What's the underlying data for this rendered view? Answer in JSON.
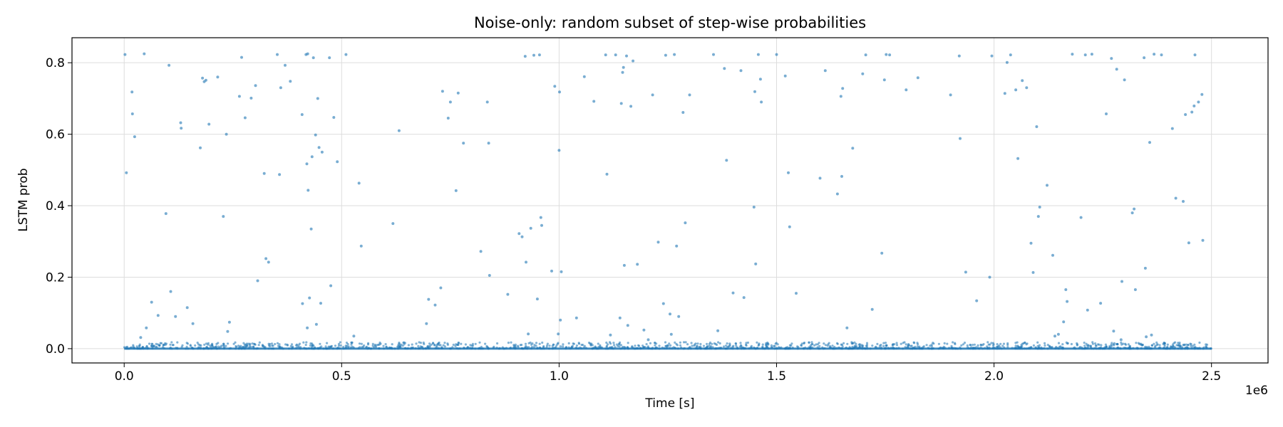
{
  "chart_data": {
    "type": "scatter",
    "title": "Noise-only: random subset of step-wise probabilities",
    "xlabel": "Time [s]",
    "ylabel": "LSTM prob",
    "x_offset_label": "1e6",
    "xlim": [
      -0.12,
      2.63
    ],
    "ylim": [
      -0.04,
      0.87
    ],
    "x_ticks": [
      0.0,
      0.5,
      1.0,
      1.5,
      2.0,
      2.5
    ],
    "x_tick_labels": [
      "0.0",
      "0.5",
      "1.0",
      "1.5",
      "2.0",
      "2.5"
    ],
    "y_ticks": [
      0.0,
      0.2,
      0.4,
      0.6,
      0.8
    ],
    "y_tick_labels": [
      "0.0",
      "0.2",
      "0.4",
      "0.6",
      "0.8"
    ],
    "grid": true,
    "marker_color": "#1f77b4",
    "x_range_data": [
      0.0,
      2.5
    ],
    "points": [
      [
        0.002,
        0.823
      ],
      [
        0.005,
        0.492
      ],
      [
        0.018,
        0.718
      ],
      [
        0.019,
        0.657
      ],
      [
        0.024,
        0.593
      ],
      [
        0.038,
        0.031
      ],
      [
        0.046,
        0.825
      ],
      [
        0.051,
        0.058
      ],
      [
        0.063,
        0.13
      ],
      [
        0.078,
        0.093
      ],
      [
        0.096,
        0.378
      ],
      [
        0.103,
        0.793
      ],
      [
        0.107,
        0.16
      ],
      [
        0.118,
        0.09
      ],
      [
        0.13,
        0.632
      ],
      [
        0.131,
        0.617
      ],
      [
        0.145,
        0.115
      ],
      [
        0.158,
        0.07
      ],
      [
        0.175,
        0.562
      ],
      [
        0.18,
        0.757
      ],
      [
        0.184,
        0.747
      ],
      [
        0.188,
        0.751
      ],
      [
        0.195,
        0.628
      ],
      [
        0.215,
        0.76
      ],
      [
        0.228,
        0.37
      ],
      [
        0.235,
        0.6
      ],
      [
        0.238,
        0.048
      ],
      [
        0.242,
        0.074
      ],
      [
        0.265,
        0.706
      ],
      [
        0.27,
        0.815
      ],
      [
        0.278,
        0.646
      ],
      [
        0.292,
        0.701
      ],
      [
        0.302,
        0.736
      ],
      [
        0.307,
        0.19
      ],
      [
        0.322,
        0.49
      ],
      [
        0.326,
        0.252
      ],
      [
        0.332,
        0.242
      ],
      [
        0.352,
        0.823
      ],
      [
        0.357,
        0.487
      ],
      [
        0.36,
        0.73
      ],
      [
        0.37,
        0.793
      ],
      [
        0.382,
        0.748
      ],
      [
        0.409,
        0.655
      ],
      [
        0.41,
        0.126
      ],
      [
        0.418,
        0.823
      ],
      [
        0.42,
        0.517
      ],
      [
        0.421,
        0.058
      ],
      [
        0.422,
        0.825
      ],
      [
        0.423,
        0.443
      ],
      [
        0.426,
        0.142
      ],
      [
        0.43,
        0.335
      ],
      [
        0.432,
        0.537
      ],
      [
        0.435,
        0.814
      ],
      [
        0.44,
        0.598
      ],
      [
        0.442,
        0.068
      ],
      [
        0.445,
        0.7
      ],
      [
        0.448,
        0.563
      ],
      [
        0.452,
        0.127
      ],
      [
        0.455,
        0.55
      ],
      [
        0.472,
        0.814
      ],
      [
        0.475,
        0.176
      ],
      [
        0.482,
        0.647
      ],
      [
        0.49,
        0.523
      ],
      [
        0.51,
        0.823
      ],
      [
        0.528,
        0.035
      ],
      [
        0.54,
        0.463
      ],
      [
        0.545,
        0.287
      ],
      [
        0.618,
        0.35
      ],
      [
        0.632,
        0.61
      ],
      [
        0.695,
        0.07
      ],
      [
        0.7,
        0.138
      ],
      [
        0.715,
        0.122
      ],
      [
        0.728,
        0.17
      ],
      [
        0.732,
        0.72
      ],
      [
        0.745,
        0.645
      ],
      [
        0.75,
        0.69
      ],
      [
        0.763,
        0.442
      ],
      [
        0.768,
        0.715
      ],
      [
        0.78,
        0.575
      ],
      [
        0.82,
        0.272
      ],
      [
        0.835,
        0.69
      ],
      [
        0.838,
        0.575
      ],
      [
        0.84,
        0.205
      ],
      [
        0.882,
        0.152
      ],
      [
        0.908,
        0.322
      ],
      [
        0.915,
        0.313
      ],
      [
        0.922,
        0.818
      ],
      [
        0.924,
        0.242
      ],
      [
        0.929,
        0.041
      ],
      [
        0.935,
        0.337
      ],
      [
        0.942,
        0.821
      ],
      [
        0.95,
        0.139
      ],
      [
        0.955,
        0.822
      ],
      [
        0.958,
        0.367
      ],
      [
        0.96,
        0.345
      ],
      [
        0.983,
        0.217
      ],
      [
        0.99,
        0.734
      ],
      [
        0.998,
        0.041
      ],
      [
        1.0,
        0.555
      ],
      [
        1.001,
        0.718
      ],
      [
        1.003,
        0.08
      ],
      [
        1.005,
        0.215
      ],
      [
        1.04,
        0.086
      ],
      [
        1.058,
        0.761
      ],
      [
        1.08,
        0.692
      ],
      [
        1.107,
        0.822
      ],
      [
        1.11,
        0.488
      ],
      [
        1.118,
        0.038
      ],
      [
        1.13,
        0.822
      ],
      [
        1.14,
        0.086
      ],
      [
        1.143,
        0.686
      ],
      [
        1.146,
        0.773
      ],
      [
        1.148,
        0.787
      ],
      [
        1.15,
        0.233
      ],
      [
        1.155,
        0.819
      ],
      [
        1.158,
        0.065
      ],
      [
        1.165,
        0.678
      ],
      [
        1.17,
        0.805
      ],
      [
        1.18,
        0.236
      ],
      [
        1.195,
        0.052
      ],
      [
        1.205,
        0.025
      ],
      [
        1.215,
        0.71
      ],
      [
        1.228,
        0.298
      ],
      [
        1.24,
        0.126
      ],
      [
        1.245,
        0.821
      ],
      [
        1.255,
        0.097
      ],
      [
        1.258,
        0.04
      ],
      [
        1.265,
        0.823
      ],
      [
        1.27,
        0.287
      ],
      [
        1.275,
        0.09
      ],
      [
        1.285,
        0.661
      ],
      [
        1.29,
        0.352
      ],
      [
        1.3,
        0.71
      ],
      [
        1.355,
        0.823
      ],
      [
        1.365,
        0.05
      ],
      [
        1.38,
        0.784
      ],
      [
        1.385,
        0.527
      ],
      [
        1.4,
        0.156
      ],
      [
        1.418,
        0.778
      ],
      [
        1.425,
        0.143
      ],
      [
        1.448,
        0.396
      ],
      [
        1.45,
        0.719
      ],
      [
        1.452,
        0.237
      ],
      [
        1.458,
        0.823
      ],
      [
        1.463,
        0.754
      ],
      [
        1.465,
        0.69
      ],
      [
        1.5,
        0.823
      ],
      [
        1.52,
        0.763
      ],
      [
        1.527,
        0.492
      ],
      [
        1.53,
        0.341
      ],
      [
        1.545,
        0.155
      ],
      [
        1.6,
        0.477
      ],
      [
        1.612,
        0.778
      ],
      [
        1.64,
        0.433
      ],
      [
        1.648,
        0.706
      ],
      [
        1.65,
        0.482
      ],
      [
        1.652,
        0.728
      ],
      [
        1.662,
        0.058
      ],
      [
        1.675,
        0.561
      ],
      [
        1.698,
        0.769
      ],
      [
        1.705,
        0.822
      ],
      [
        1.72,
        0.11
      ],
      [
        1.742,
        0.267
      ],
      [
        1.748,
        0.752
      ],
      [
        1.752,
        0.823
      ],
      [
        1.76,
        0.822
      ],
      [
        1.798,
        0.724
      ],
      [
        1.825,
        0.758
      ],
      [
        1.9,
        0.71
      ],
      [
        1.92,
        0.819
      ],
      [
        1.922,
        0.588
      ],
      [
        1.935,
        0.214
      ],
      [
        1.96,
        0.134
      ],
      [
        1.99,
        0.2
      ],
      [
        1.995,
        0.819
      ],
      [
        2.025,
        0.714
      ],
      [
        2.03,
        0.801
      ],
      [
        2.038,
        0.822
      ],
      [
        2.05,
        0.724
      ],
      [
        2.055,
        0.532
      ],
      [
        2.065,
        0.75
      ],
      [
        2.075,
        0.73
      ],
      [
        2.085,
        0.295
      ],
      [
        2.09,
        0.213
      ],
      [
        2.098,
        0.621
      ],
      [
        2.102,
        0.37
      ],
      [
        2.105,
        0.396
      ],
      [
        2.122,
        0.457
      ],
      [
        2.135,
        0.261
      ],
      [
        2.14,
        0.035
      ],
      [
        2.148,
        0.04
      ],
      [
        2.16,
        0.075
      ],
      [
        2.165,
        0.165
      ],
      [
        2.168,
        0.132
      ],
      [
        2.18,
        0.824
      ],
      [
        2.2,
        0.367
      ],
      [
        2.21,
        0.822
      ],
      [
        2.215,
        0.108
      ],
      [
        2.225,
        0.824
      ],
      [
        2.245,
        0.127
      ],
      [
        2.258,
        0.657
      ],
      [
        2.27,
        0.812
      ],
      [
        2.275,
        0.049
      ],
      [
        2.282,
        0.782
      ],
      [
        2.292,
        0.025
      ],
      [
        2.294,
        0.188
      ],
      [
        2.3,
        0.752
      ],
      [
        2.318,
        0.38
      ],
      [
        2.322,
        0.391
      ],
      [
        2.325,
        0.165
      ],
      [
        2.345,
        0.814
      ],
      [
        2.348,
        0.225
      ],
      [
        2.35,
        0.033
      ],
      [
        2.358,
        0.577
      ],
      [
        2.362,
        0.038
      ],
      [
        2.368,
        0.824
      ],
      [
        2.385,
        0.822
      ],
      [
        2.41,
        0.616
      ],
      [
        2.418,
        0.421
      ],
      [
        2.435,
        0.412
      ],
      [
        2.44,
        0.655
      ],
      [
        2.448,
        0.296
      ],
      [
        2.455,
        0.662
      ],
      [
        2.46,
        0.679
      ],
      [
        2.462,
        0.822
      ],
      [
        2.47,
        0.69
      ],
      [
        2.478,
        0.711
      ],
      [
        2.48,
        0.303
      ]
    ]
  }
}
